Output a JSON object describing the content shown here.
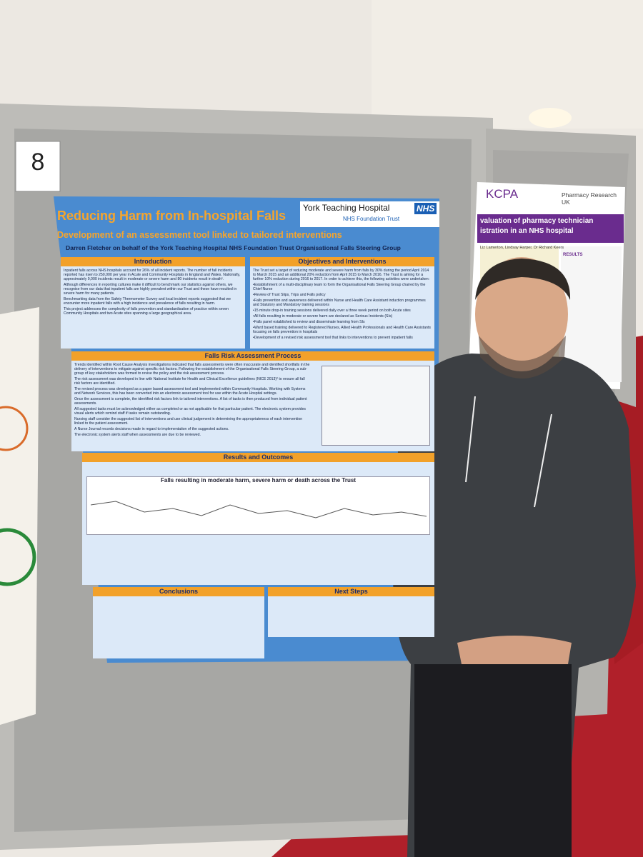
{
  "board_number": "8",
  "poster": {
    "title": "Reducing Harm from In-hospital Falls",
    "subtitle": "Development of an assessment tool linked to tailored interventions",
    "authors": "Darren Fletcher on behalf of the York Teaching Hospital NHS Foundation Trust Organisational Falls Steering Group",
    "logo": {
      "name": "York Teaching Hospital",
      "trust": "NHS Foundation Trust",
      "badge": "NHS"
    },
    "introduction": {
      "heading": "Introduction",
      "paragraphs": [
        "Inpatient falls across NHS hospitals account for 26% of all incident reports. The number of fall incidents reported has risen to 250,000 per year in Acute and Community Hospitals in England and Wales. Nationally, approximately 9,000 incidents result in moderate or severe harm and 80 incidents result in death¹.",
        "Although differences in reporting cultures make it difficult to benchmark our statistics against others, we recognise from our data that inpatient falls are highly prevalent within our Trust and these have resulted in severe harm for many patients.",
        "Benchmarking data from the Safety Thermometer Survey and local incident reports suggested that we encounter more inpatient falls with a high incidence and prevalence of falls resulting in harm.",
        "This project addresses the complexity of falls prevention and standardisation of practice within seven Community Hospitals and two Acute sites spanning a large geographical area."
      ]
    },
    "objectives": {
      "heading": "Objectives and Interventions",
      "paragraphs": [
        "The Trust set a target of reducing moderate and severe harm from falls by 30% during the period April 2014 to March 2015 and an additional 20% reduction from April 2015 to March 2016. The Trust is aiming for a further 10% reduction during 2016 to 2017. In order to achieve this, the following activities were undertaken:",
        "•Establishment of a multi-disciplinary team to form the Organisational Falls Steering Group chaired by the Chief Nurse",
        "•Review of Trust Slips, Trips and Falls policy",
        "•Falls prevention and awareness delivered within Nurse and Health Care Assistant induction programmes and Statutory and Mandatory training sessions",
        "•15 minute drop-in training sessions delivered daily over a three week period on both Acute sites",
        "•All falls resulting in moderate or severe harm are declared as Serious Incidents (SIs)",
        "•Falls panel established to review and disseminate learning from SIs",
        "•Ward based training delivered to Registered Nurses, Allied Health Professionals and Health Care Assistants focusing on falls prevention in hospitals",
        "•Development of a revised risk assessment tool that links to interventions to prevent inpatient falls"
      ]
    },
    "assessment": {
      "heading": "Falls Risk Assessment Process",
      "paragraphs": [
        "Trends identified within Root Cause Analysis investigations indicated that falls assessments were often inaccurate and identified shortfalls in the delivery of interventions to mitigate against specific risk factors. Following the establishment of the Organisational Falls Steering Group, a sub-group of key stakeholders was formed to revise the policy and the risk assessment process.",
        "The risk assessment was developed in line with National Institute for Health and Clinical Excellence guidelines (NICE 2013)² to ensure all fall risk factors are identified.",
        "The revised process was developed as a paper based assessment tool and implemented within Community Hospitals. Working with Systems and Network Services, this has been converted into an electronic assessment tool for use within the Acute Hospital settings.",
        "Once the assessment is complete, the identified risk factors link to tailored interventions. A list of tasks is then produced from individual patient assessments.",
        "All suggested tasks must be acknowledged either as completed or as not applicable for that particular patient. The electronic system provides visual alerts which remind staff if tasks remain outstanding.",
        "Nursing staff consider the suggested list of interventions and use clinical judgement in determining the appropriateness of each intervention linked to the patient assessment.",
        "A Nurse Journal records decisions made in regard to implementation of the suggested actions.",
        "The electronic system alerts staff when assessments are due to be reviewed."
      ]
    },
    "results": {
      "heading": "Results and Outcomes",
      "chart_title": "Falls resulting in moderate harm, severe harm or death across the Trust"
    },
    "conclusions": {
      "heading": "Conclusions"
    },
    "next_steps": {
      "heading": "Next Steps"
    }
  },
  "neighbor_poster": {
    "org": "KCPA",
    "sponsor": "Pharmacy Research UK",
    "title_line1": "valuation of pharmacy technician",
    "title_line2": "istration in an NHS hospital",
    "authors": "Liz Lamerton, Lindsay Harper, Dr Richard Keers",
    "results": "RESULTS"
  }
}
